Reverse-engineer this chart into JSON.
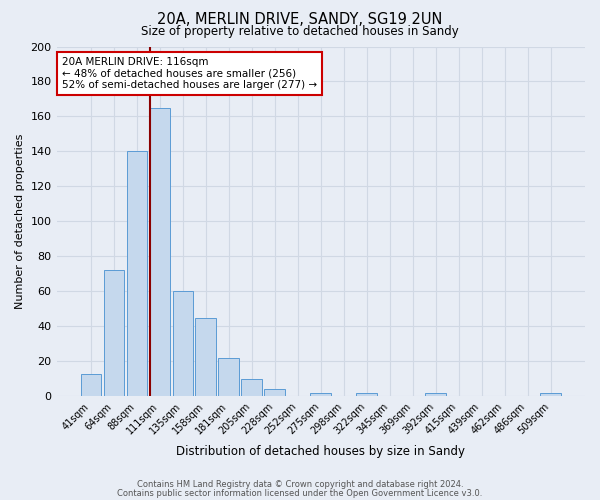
{
  "title1": "20A, MERLIN DRIVE, SANDY, SG19 2UN",
  "title2": "Size of property relative to detached houses in Sandy",
  "xlabel": "Distribution of detached houses by size in Sandy",
  "ylabel": "Number of detached properties",
  "bar_labels": [
    "41sqm",
    "64sqm",
    "88sqm",
    "111sqm",
    "135sqm",
    "158sqm",
    "181sqm",
    "205sqm",
    "228sqm",
    "252sqm",
    "275sqm",
    "298sqm",
    "322sqm",
    "345sqm",
    "369sqm",
    "392sqm",
    "415sqm",
    "439sqm",
    "462sqm",
    "486sqm",
    "509sqm"
  ],
  "bar_values": [
    13,
    72,
    140,
    165,
    60,
    45,
    22,
    10,
    4,
    0,
    2,
    0,
    2,
    0,
    0,
    2,
    0,
    0,
    0,
    0,
    2
  ],
  "bar_color": "#c5d8ed",
  "bar_edge_color": "#5b9bd5",
  "grid_color": "#d0d8e4",
  "background_color": "#e8edf5",
  "vline_index": 3,
  "vline_color": "#8b0000",
  "annotation_title": "20A MERLIN DRIVE: 116sqm",
  "annotation_line1": "← 48% of detached houses are smaller (256)",
  "annotation_line2": "52% of semi-detached houses are larger (277) →",
  "annotation_box_color": "#ffffff",
  "annotation_box_edge": "#cc0000",
  "footer1": "Contains HM Land Registry data © Crown copyright and database right 2024.",
  "footer2": "Contains public sector information licensed under the Open Government Licence v3.0.",
  "ylim": [
    0,
    200
  ],
  "yticks": [
    0,
    20,
    40,
    60,
    80,
    100,
    120,
    140,
    160,
    180,
    200
  ]
}
